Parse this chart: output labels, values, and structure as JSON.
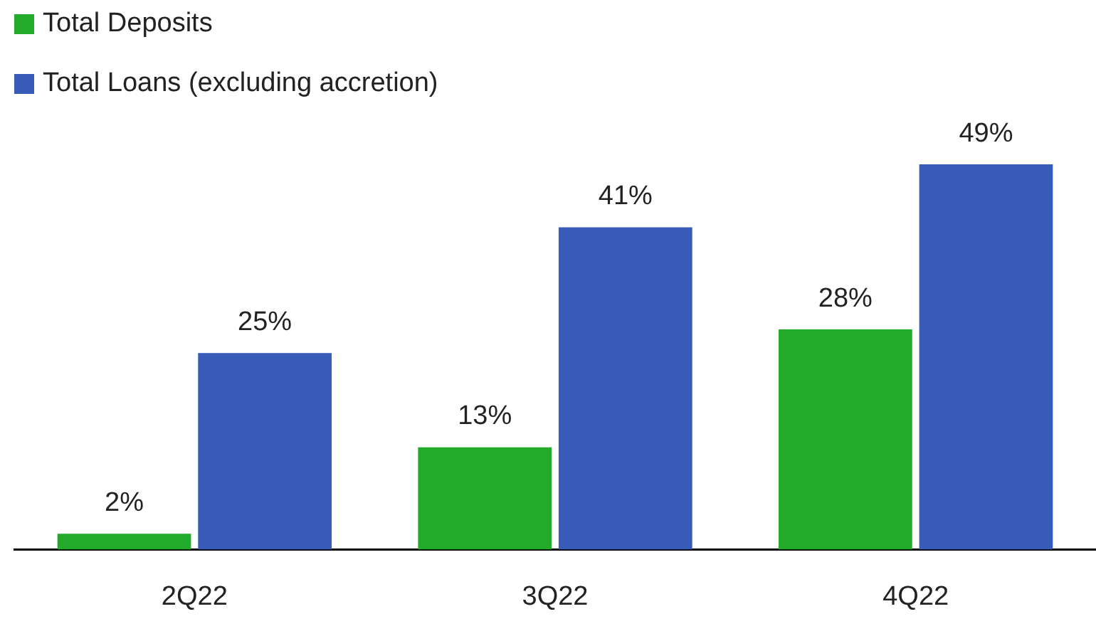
{
  "chart_data": {
    "type": "bar",
    "categories": [
      "2Q22",
      "3Q22",
      "4Q22"
    ],
    "legend": "top left",
    "series": [
      {
        "name": "Total Deposits",
        "color": "#22aa2b",
        "values": [
          2,
          13,
          28
        ],
        "value_labels": [
          "2%",
          "13%",
          "28%"
        ]
      },
      {
        "name": "Total Loans (excluding accretion)",
        "color": "#3a5cb9",
        "values": [
          25,
          41,
          49
        ],
        "value_labels": [
          "25%",
          "41%",
          "49%"
        ]
      }
    ]
  }
}
